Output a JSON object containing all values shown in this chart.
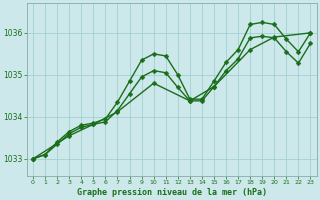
{
  "background_color": "#cce8ea",
  "grid_color": "#99cccc",
  "line_color": "#1a6e1a",
  "title": "Graphe pression niveau de la mer (hPa)",
  "xlim": [
    -0.5,
    23.5
  ],
  "ylim": [
    1032.6,
    1036.7
  ],
  "yticks": [
    1033,
    1034,
    1035,
    1036
  ],
  "xticks": [
    0,
    1,
    2,
    3,
    4,
    5,
    6,
    7,
    8,
    9,
    10,
    11,
    12,
    13,
    14,
    15,
    16,
    17,
    18,
    19,
    20,
    21,
    22,
    23
  ],
  "series": [
    {
      "x": [
        0,
        1,
        2,
        3,
        4,
        5,
        6,
        7,
        8,
        9,
        10,
        11,
        12,
        13,
        14,
        15,
        16,
        17,
        18,
        19,
        20,
        21,
        22,
        23
      ],
      "y": [
        1033.0,
        1033.1,
        1033.4,
        1033.65,
        1033.8,
        1033.85,
        1033.95,
        1034.35,
        1034.85,
        1035.35,
        1035.5,
        1035.45,
        1035.0,
        1034.42,
        1034.42,
        1034.85,
        1035.3,
        1035.6,
        1036.2,
        1036.25,
        1036.2,
        1035.85,
        1035.55,
        1036.0
      ],
      "marker": "D",
      "markersize": 2.5,
      "linewidth": 1.0
    },
    {
      "x": [
        0,
        1,
        2,
        3,
        4,
        5,
        6,
        7,
        8,
        9,
        10,
        11,
        12,
        13,
        14,
        15,
        16,
        17,
        18,
        19,
        20,
        21,
        22,
        23
      ],
      "y": [
        1033.0,
        1033.1,
        1033.35,
        1033.6,
        1033.75,
        1033.82,
        1033.88,
        1034.15,
        1034.55,
        1034.95,
        1035.1,
        1035.05,
        1034.7,
        1034.38,
        1034.38,
        1034.72,
        1035.1,
        1035.38,
        1035.88,
        1035.92,
        1035.88,
        1035.55,
        1035.28,
        1035.75
      ],
      "marker": "D",
      "markersize": 2.5,
      "linewidth": 1.0
    },
    {
      "x": [
        0,
        3,
        5,
        7,
        10,
        13,
        15,
        18,
        20,
        23
      ],
      "y": [
        1033.0,
        1033.55,
        1033.82,
        1034.12,
        1034.8,
        1034.38,
        1034.72,
        1035.6,
        1035.9,
        1036.0
      ],
      "marker": "D",
      "markersize": 2.5,
      "linewidth": 1.0
    }
  ]
}
